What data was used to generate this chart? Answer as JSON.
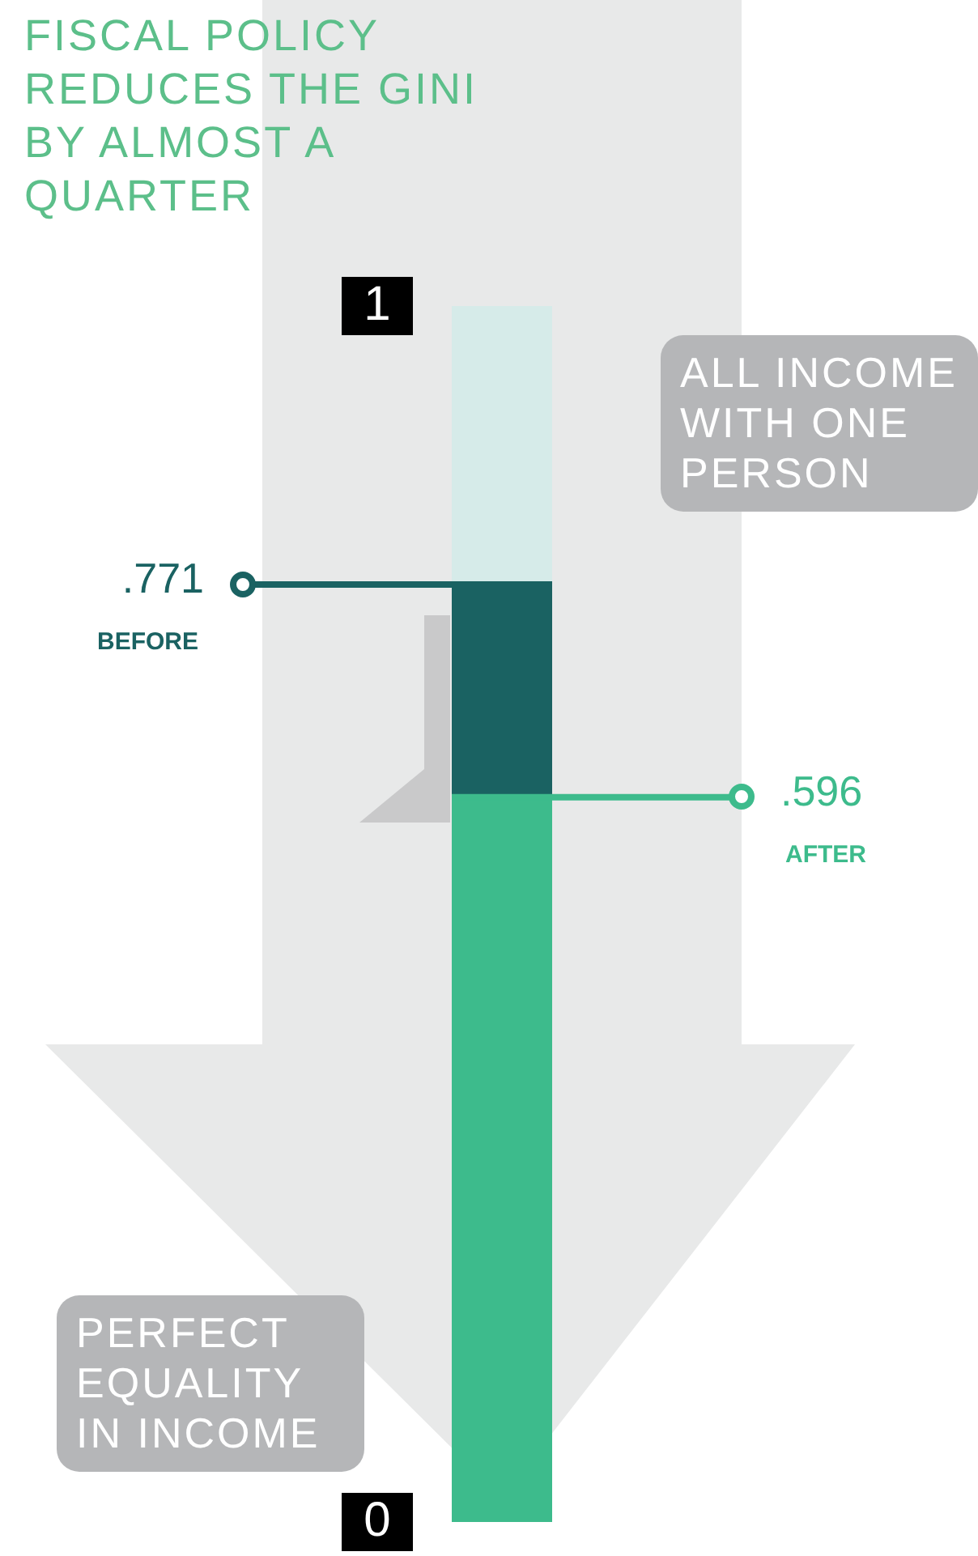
{
  "chart_data": {
    "type": "bar",
    "title": "FISCAL POLICY REDUCES THE GINI BY ALMOST A QUARTER",
    "categories": [
      null
    ],
    "stacked": true,
    "series": [
      {
        "color": "#3dbb8c",
        "values": [
          0.596
        ]
      },
      {
        "color": "#1a6262",
        "values": [
          0.175
        ]
      },
      {
        "color": "#d6ebe9",
        "values": [
          0.229
        ]
      }
    ],
    "ylim": [
      0,
      1
    ],
    "yticks": [
      0,
      1
    ],
    "legend": false,
    "ref_lines": [
      {
        "axis": "y",
        "value": 0.771,
        "label": ".771",
        "color": "#1a6262"
      },
      {
        "axis": "y",
        "value": 0.596,
        "label": ".596",
        "color": "#3dbb8c"
      }
    ],
    "annotations": [
      "BEFORE",
      "AFTER",
      "ALL INCOME WITH ONE PERSON",
      "PERFECT EQUALITY IN INCOME"
    ]
  }
}
